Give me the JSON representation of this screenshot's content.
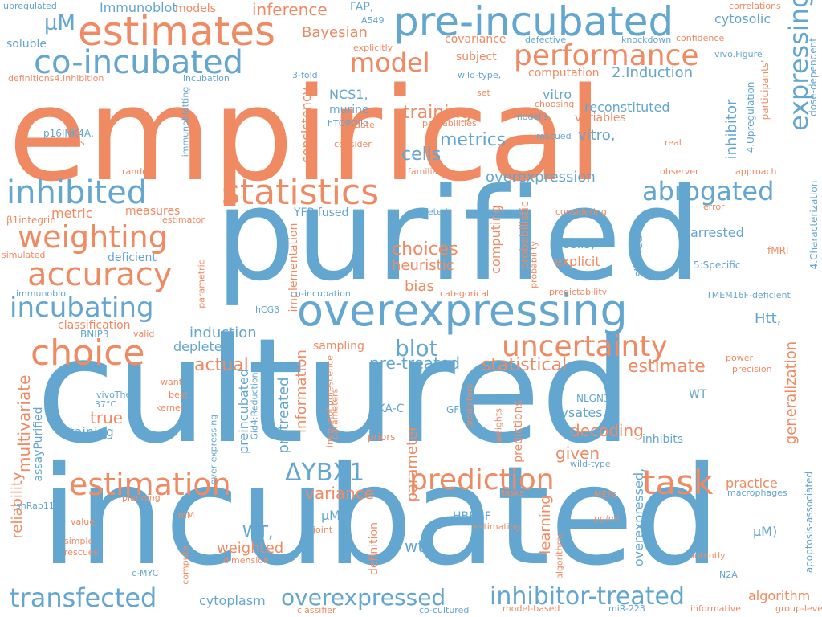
{
  "colors": {
    "blue": "#63a6d0",
    "orange": "#ef8a62"
  },
  "words": {
    "w0": "empirical",
    "w1": "purified",
    "w2": "cultured",
    "w3": "incubated",
    "w4": "pre-incubated",
    "w5": "estimates",
    "w6": "co-incubated",
    "w7": "performance",
    "w8": "model",
    "w9": "statistics",
    "w10": "inhibited",
    "w11": "weighting",
    "w12": "abrogated",
    "w13": "accuracy",
    "w14": "overexpressing",
    "w15": "incubating",
    "w16": "choice",
    "w17": "uncertainty",
    "w18": "estimation",
    "w19": "task",
    "w20": "prediction",
    "w21": "transfected",
    "w22": "overexpressed",
    "w23": "inhibitor-treated",
    "w24": "ΔYBX1",
    "w25": "expressing",
    "w26": "blot",
    "w27": "Bayesian",
    "w28": "inference",
    "w29": "µM",
    "w30": "training",
    "w31": "metrics",
    "w32": "cells",
    "w33": "choices",
    "w34": "heuristic",
    "w35": "bias",
    "w36": "statistical",
    "w37": "estimate",
    "w38": "pre-treated",
    "w39": "actual",
    "w40": "true",
    "w41": "given",
    "w42": "decoding",
    "w43": "lysates",
    "w44": "variance",
    "w45": "practice",
    "w46": "wt",
    "w47": "WT,",
    "w48": "weighted",
    "w49": "cytoplasm",
    "w50": "algorithm",
    "w51": "µM)",
    "w52": "staining",
    "w53": "multivariate",
    "w54": "reliability",
    "w55": "assayPurified",
    "w56": "information",
    "w57": "pretreated",
    "w58": "preincubated",
    "w59": "generalization",
    "w60": "cytoplasmic",
    "w61": "inhibitor",
    "w62": "Immunoblot",
    "w63": "FAP,",
    "w64": "cytosolic",
    "w65": "covariance",
    "w66": "subject",
    "w67": "computation",
    "w68": "2.Induction",
    "w69": "reconstituted",
    "w70": "variables",
    "w71": "vitro",
    "w72": "vitro,",
    "w73": "NCS1,",
    "w74": "murine",
    "w75": "overexpression",
    "w76": "metric",
    "w77": "measures",
    "w78": "YFP-fused",
    "w79": "deficient",
    "w80": "classification",
    "w81": "induction",
    "w82": "depleted",
    "w83": "sampling",
    "w84": "Htt,",
    "w85": "arrested",
    "w86": "stained",
    "w87": "cells,",
    "w88": "explicit",
    "w89": "computing",
    "w90": "probabilistic",
    "w91": "implementation",
    "w92": "consistency",
    "w93": "soluble",
    "w94": "models",
    "w95": "upregulated",
    "w96": "A549",
    "w97": "explicitly",
    "w98": "defective",
    "w99": "knockdown",
    "w100": "confidence",
    "w101": "correlations",
    "w102": "vivo.Figure",
    "w103": "dose-dependent",
    "w104": "definitions4.Inhibition",
    "w105": "incubation",
    "w106": "wild-type,",
    "w107": "set",
    "w108": "hTOPOIIα",
    "w109": "update",
    "w110": "probabilities",
    "w111": "model's",
    "w112": "choosing",
    "w113": "participants'",
    "w114": "p16INK4A,",
    "w115": "subjects",
    "w116": "consider",
    "w117": "rescued",
    "w118": "real",
    "w119": "4.Upregulation",
    "w120": "immunoblotting",
    "w121": "random",
    "w122": "familiarity",
    "w123": "observer",
    "w124": "approach",
    "w125": "4.Characterization",
    "w126": "β1integrin",
    "w127": "estimator",
    "w128": "secreted",
    "w129": "considering",
    "w130": "error",
    "w131": "simulated",
    "w132": "fMRI",
    "w133": "5:Specific",
    "w134": "immunoblot",
    "w135": "co-incubation",
    "w136": "categorical",
    "w137": "predictability",
    "w138": "TMEM16F-deficient",
    "w139": "parametric",
    "w140": "probability",
    "w141": "hCGβ",
    "w142": "BNIP3",
    "w143": "valid",
    "w144": "power",
    "w145": "precision",
    "w146": "want",
    "w147": "best",
    "w148": "kernel",
    "w149": "37°C",
    "w150": "vivoThe",
    "w151": "over-expressing",
    "w152": "Gid4:Reduction",
    "w153": "immunofluorescence",
    "w154": "parameters",
    "w155": "PKA-C",
    "w156": "GFP",
    "w157": "priors",
    "w158": "parameter",
    "w159": "predictors",
    "w160": "predictions",
    "w161": "weights",
    "w162": "NLGN3",
    "w163": "wild-type",
    "w164": "inhibits",
    "w165": "WT",
    "w166": "overexpressed,",
    "w167": "HBEGF",
    "w168": "learning",
    "w169": "tasks",
    "w170": "MEFs",
    "w171": "µg/ml",
    "w172": "macrophages",
    "w173": "apoptosis-associated",
    "w174": "shRab11b",
    "w175": "value",
    "w176": "simple",
    "w177": "rescues",
    "w178": "planning",
    "w179": "mM",
    "w180": "joint",
    "w181": "estimating",
    "w182": "algorithms",
    "w183": "potently",
    "w184": "N2A",
    "w185": "c-MYC",
    "w186": "compute",
    "w187": "dimension",
    "w188": "definition",
    "w189": "classifier",
    "w190": "co-cultured",
    "w191": "model-based",
    "w192": "miR-223",
    "w193": "informative",
    "w194": "group-level",
    "w195": "3-fold"
  }
}
